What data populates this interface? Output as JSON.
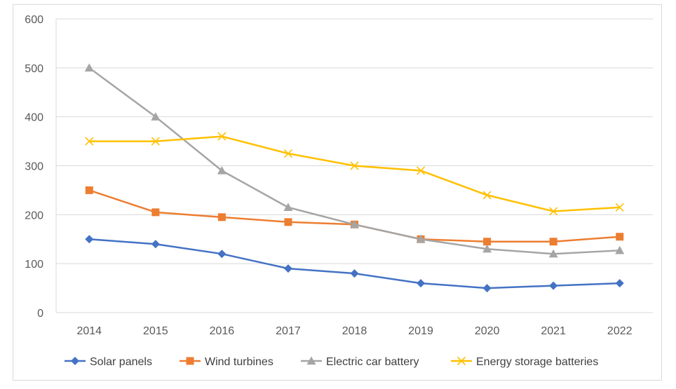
{
  "chart_data": {
    "type": "line",
    "title": "",
    "xlabel": "",
    "ylabel": "",
    "categories": [
      "2014",
      "2015",
      "2016",
      "2017",
      "2018",
      "2019",
      "2020",
      "2021",
      "2022"
    ],
    "ylim": [
      0,
      600
    ],
    "yticks": [
      0,
      100,
      200,
      300,
      400,
      500,
      600
    ],
    "grid": "horizontal",
    "legend_position": "bottom",
    "series": [
      {
        "name": "Solar panels",
        "color": "#4472c4",
        "marker": "diamond",
        "values": [
          150,
          140,
          120,
          90,
          80,
          60,
          50,
          55,
          60
        ]
      },
      {
        "name": "Wind turbines",
        "color": "#ed7d31",
        "marker": "square",
        "values": [
          250,
          205,
          195,
          185,
          180,
          150,
          145,
          145,
          155
        ]
      },
      {
        "name": "Electric car battery",
        "color": "#a5a5a5",
        "marker": "triangle",
        "values": [
          500,
          400,
          290,
          215,
          180,
          150,
          130,
          120,
          127
        ]
      },
      {
        "name": "Energy storage batteries",
        "color": "#ffc000",
        "marker": "x",
        "values": [
          350,
          350,
          360,
          325,
          300,
          290,
          240,
          207,
          215
        ]
      }
    ]
  }
}
